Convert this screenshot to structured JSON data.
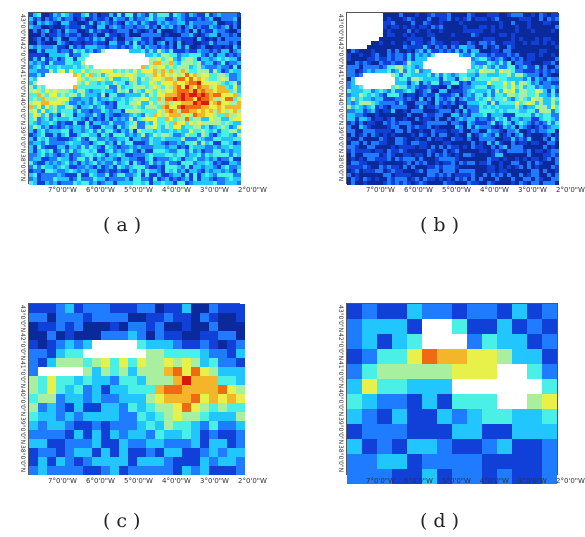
{
  "colors": {
    "ramp": [
      "#0a2a9c",
      "#1140d8",
      "#1f7bff",
      "#22c6ff",
      "#4af0e6",
      "#a8f0a0",
      "#e8f04a",
      "#f5b52a",
      "#f06a14",
      "#d81a0a"
    ],
    "nodata": "#ffffff"
  },
  "panels": [
    {
      "id": "a",
      "caption": "(a)",
      "ylabels": [
        "43°0'0\"N",
        "42°0'0\"N",
        "41°0'0\"N",
        "40°0'0\"N",
        "39°0'0\"N",
        "38°0'0\"N"
      ],
      "xlabels": [
        "7°0'0\"W",
        "6°0'0\"W",
        "5°0'0\"W",
        "4°0'0\"W",
        "3°0'0\"W",
        "2°0'0\"W"
      ],
      "style": "fine-warm"
    },
    {
      "id": "b",
      "caption": "(b)",
      "ylabels": [
        "43°0'0\"N",
        "42°0'0\"N",
        "41°0'0\"N",
        "40°0'0\"N",
        "39°0'0\"N",
        "38°0'0\"N"
      ],
      "xlabels": [
        "7°0'0\"W",
        "6°0'0\"W",
        "5°0'0\"W",
        "4°0'0\"W",
        "3°0'0\"W",
        "2°0'0\"W"
      ],
      "style": "fine-cool"
    },
    {
      "id": "c",
      "caption": "(c)",
      "ylabels": [
        "43°0'0\"N",
        "42°0'0\"N",
        "41°0'0\"N",
        "40°0'0\"N",
        "39°0'0\"N",
        "38°0'0\"N"
      ],
      "xlabels": [
        "7°0'0\"W",
        "6°0'0\"W",
        "5°0'0\"W",
        "4°0'0\"W",
        "3°0'0\"W",
        "2°0'0\"W"
      ],
      "style": "medium-blocks"
    },
    {
      "id": "d",
      "caption": "(d)",
      "ylabels": [
        "43°0'0\"N",
        "42°0'0\"N",
        "41°0'0\"N",
        "40°0'0\"N",
        "39°0'0\"N",
        "38°0'0\"N"
      ],
      "xlabels": [
        "7°0'0\"W",
        "6°0'0\"W",
        "5°0'0\"W",
        "4°0'0\"W",
        "3°0'0\"W",
        "2°0'0\"W"
      ],
      "style": "coarse-blocks"
    }
  ]
}
